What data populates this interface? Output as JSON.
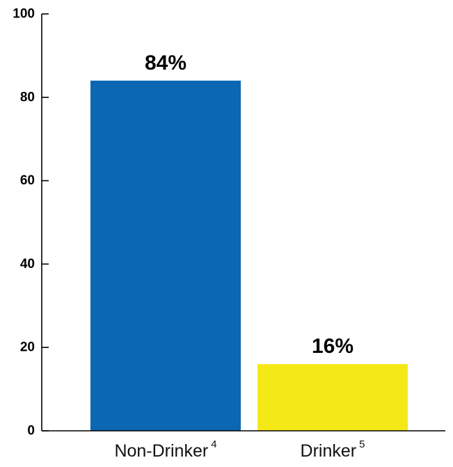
{
  "chart_data": {
    "type": "bar",
    "categories": [
      "Non-Drinker",
      "Drinker"
    ],
    "category_superscripts": [
      "4",
      "5"
    ],
    "values": [
      84,
      16
    ],
    "data_labels": [
      "84%",
      "16%"
    ],
    "bar_colors": [
      "#0b67b3",
      "#f5e817"
    ],
    "ylim": [
      0,
      100
    ],
    "yticks": [
      0,
      20,
      40,
      60,
      80,
      100
    ],
    "ytick_labels": [
      "0",
      "20",
      "40",
      "60",
      "80",
      "100"
    ],
    "grid": false,
    "legend": "none",
    "title": "",
    "xlabel": "",
    "ylabel": ""
  }
}
